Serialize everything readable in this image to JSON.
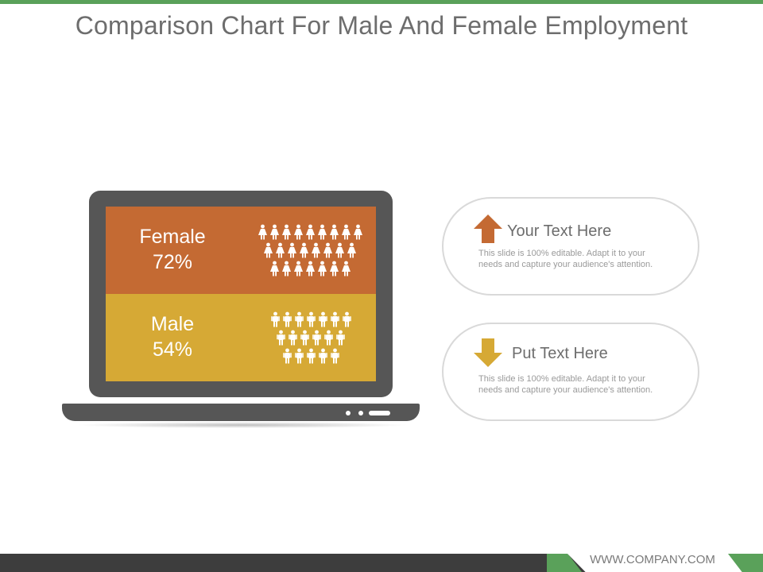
{
  "title": "Comparison Chart For Male And Female Employment",
  "colors": {
    "accent_green": "#5aa15a",
    "female_panel": "#c46a33",
    "male_panel": "#d6a935",
    "laptop": "#565656"
  },
  "laptop": {
    "female": {
      "label": "Female",
      "percent_text": "72%",
      "percent": 72,
      "people_rows": [
        9,
        8,
        7
      ],
      "icon": "female-person-icon"
    },
    "male": {
      "label": "Male",
      "percent_text": "54%",
      "percent": 54,
      "people_rows": [
        7,
        6,
        5
      ],
      "icon": "male-person-icon"
    }
  },
  "cards": [
    {
      "icon": "arrow-up-icon",
      "icon_color": "#c46a33",
      "title": "Your Text Here",
      "body": "This slide is 100% editable. Adapt it to your needs and capture your audience's attention."
    },
    {
      "icon": "arrow-down-icon",
      "icon_color": "#d6a935",
      "title": "Put Text Here",
      "body": "This slide is 100% editable. Adapt it to your needs and capture your audience's attention."
    }
  ],
  "footer": {
    "website": "WWW.COMPANY.COM"
  }
}
